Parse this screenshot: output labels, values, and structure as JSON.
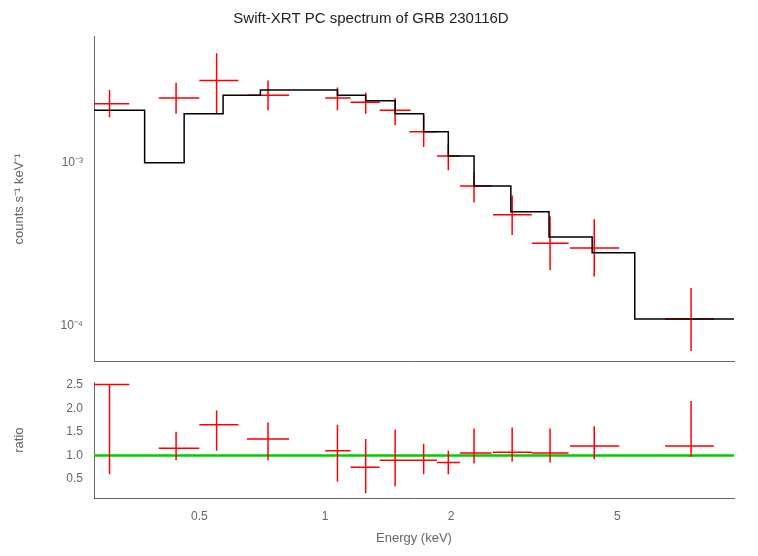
{
  "chart_data": [
    {
      "type": "line",
      "title": "Swift-XRT PC spectrum of GRB 230116D",
      "ylabel": "counts s⁻¹ keV⁻¹",
      "log": true,
      "grid": false,
      "tick_labels": "y",
      "xlim": [
        0.28,
        9.5
      ],
      "ylim": [
        6e-05,
        0.006
      ],
      "yticks": [
        {
          "value": 0.0001,
          "label": "10⁻⁴"
        },
        {
          "value": 0.001,
          "label": "10⁻³"
        }
      ],
      "series": [
        {
          "type": "step",
          "color": "#000000",
          "bins": [
            0.28,
            0.37,
            0.46,
            0.57,
            0.7,
            0.87,
            1.07,
            1.25,
            1.47,
            1.72,
            1.97,
            2.27,
            2.78,
            3.43,
            4.35,
            5.5,
            7.0,
            9.5
          ],
          "values": [
            0.0021,
            0.001,
            0.002,
            0.0026,
            0.0028,
            0.0028,
            0.0026,
            0.0024,
            0.002,
            0.00155,
            0.0011,
            0.00072,
            0.0005,
            0.00035,
            0.00028,
            0.00011,
            0.00011
          ]
        },
        {
          "type": "errorbar",
          "color": "#ff0000",
          "x": [
            0.305,
            0.44,
            0.55,
            0.73,
            1.07,
            1.25,
            1.47,
            1.72,
            1.97,
            2.27,
            2.8,
            3.45,
            4.4,
            7.5
          ],
          "xerr_low": [
            0.025,
            0.04,
            0.05,
            0.08,
            0.07,
            0.1,
            0.12,
            0.13,
            0.12,
            0.17,
            0.28,
            0.33,
            0.55,
            1.0
          ],
          "xerr_high": [
            0.035,
            0.06,
            0.07,
            0.09,
            0.08,
            0.1,
            0.13,
            0.13,
            0.13,
            0.23,
            0.32,
            0.37,
            0.65,
            1.0
          ],
          "values": [
            0.0023,
            0.0025,
            0.0032,
            0.0026,
            0.0025,
            0.00235,
            0.0021,
            0.00155,
            0.0011,
            0.00072,
            0.00048,
            0.00032,
            0.0003,
            0.00011
          ],
          "yerr_low": [
            0.0004,
            0.0005,
            0.0012,
            0.0005,
            0.0004,
            0.00035,
            0.0004,
            0.0003,
            0.0002,
            0.00015,
            0.00012,
            0.0001,
            0.0001,
            4e-05
          ],
          "yerr_high": [
            0.0005,
            0.0006,
            0.0015,
            0.0006,
            0.0004,
            0.00035,
            0.0004,
            0.0004,
            0.0002,
            0.00015,
            0.00015,
            0.00015,
            0.00015,
            6e-05
          ]
        }
      ]
    },
    {
      "type": "line",
      "xlabel": "Energy (keV)",
      "ylabel": "ratio",
      "log": "x",
      "grid": false,
      "xlim": [
        0.28,
        9.5
      ],
      "ylim": [
        0.1,
        2.55
      ],
      "xticks": [
        0.5,
        1,
        2,
        5
      ],
      "yticks": [
        0.5,
        {
          "value": 1.0,
          "label": "1.0"
        },
        1.5,
        {
          "value": 2.0,
          "label": "2.0"
        },
        2.5
      ],
      "series": [
        {
          "type": "errorbar",
          "color": "#ff0000",
          "x": [
            0.305,
            0.44,
            0.55,
            0.73,
            1.07,
            1.25,
            1.47,
            1.72,
            1.97,
            2.27,
            2.8,
            3.45,
            4.4,
            7.5
          ],
          "xerr_low": [
            0.025,
            0.04,
            0.05,
            0.08,
            0.07,
            0.1,
            0.12,
            0.13,
            0.12,
            0.17,
            0.28,
            0.33,
            0.55,
            1.0
          ],
          "xerr_high": [
            0.035,
            0.06,
            0.07,
            0.09,
            0.08,
            0.1,
            0.13,
            0.13,
            0.13,
            0.23,
            0.32,
            0.37,
            0.65,
            1.0
          ],
          "values": [
            2.5,
            1.15,
            1.65,
            1.35,
            1.1,
            0.75,
            0.9,
            0.9,
            0.85,
            1.05,
            1.07,
            1.05,
            1.2,
            1.2
          ],
          "yerr_low": [
            1.9,
            0.25,
            0.55,
            0.45,
            0.65,
            0.55,
            0.55,
            0.3,
            0.25,
            0.22,
            0.2,
            0.2,
            0.28,
            0.23
          ],
          "yerr_high": [
            0.0,
            0.35,
            0.3,
            0.35,
            0.55,
            0.6,
            0.65,
            0.35,
            0.25,
            0.52,
            0.52,
            0.52,
            0.42,
            0.95
          ]
        },
        {
          "type": "hline",
          "color": "#00cc00",
          "values": [
            1.0
          ]
        }
      ]
    }
  ]
}
